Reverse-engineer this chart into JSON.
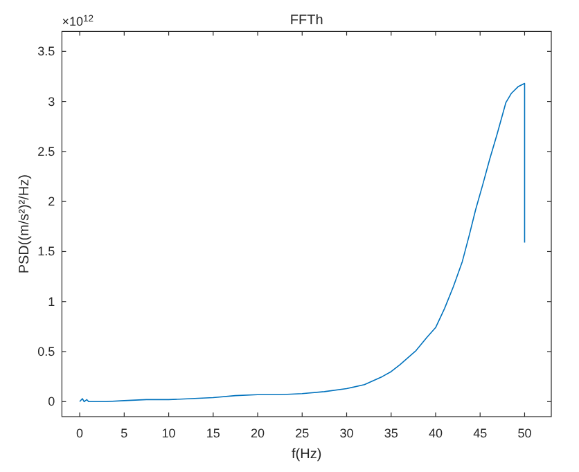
{
  "chart_data": {
    "type": "line",
    "title": "FFTh",
    "xlabel": "f(Hz)",
    "ylabel": "PSD((m/s²)²/Hz)",
    "annotations": [
      "×10$^{12}$"
    ],
    "xlim": [
      -2,
      53
    ],
    "xticks": [
      0,
      5,
      10,
      15,
      20,
      25,
      30,
      35,
      40,
      45,
      50
    ],
    "ylim": [
      -0.15,
      3.7
    ],
    "yticks": [
      0,
      0.5,
      1,
      1.5,
      2,
      2.5,
      3,
      3.5
    ],
    "grid": false,
    "series": [
      {
        "color": "#0072bd",
        "x": [
          0,
          0.3,
          0.5,
          0.8,
          1,
          2,
          3,
          5,
          7.5,
          10,
          12.5,
          15,
          17.5,
          20,
          22.5,
          25,
          27.5,
          30,
          32,
          34,
          35,
          36,
          37.8,
          39,
          40,
          41,
          42,
          43,
          43.8,
          44.5,
          45.3,
          46.1,
          46.9,
          47.9,
          48.5,
          49.3,
          50,
          50
        ],
        "values": [
          0,
          0.03,
          0,
          0.02,
          0,
          0,
          0,
          0.01,
          0.02,
          0.02,
          0.03,
          0.04,
          0.06,
          0.07,
          0.07,
          0.08,
          0.1,
          0.13,
          0.17,
          0.25,
          0.3,
          0.37,
          0.51,
          0.64,
          0.74,
          0.93,
          1.15,
          1.4,
          1.67,
          1.92,
          2.17,
          2.43,
          2.67,
          2.99,
          3.08,
          3.15,
          3.18,
          1.59
        ]
      }
    ]
  }
}
